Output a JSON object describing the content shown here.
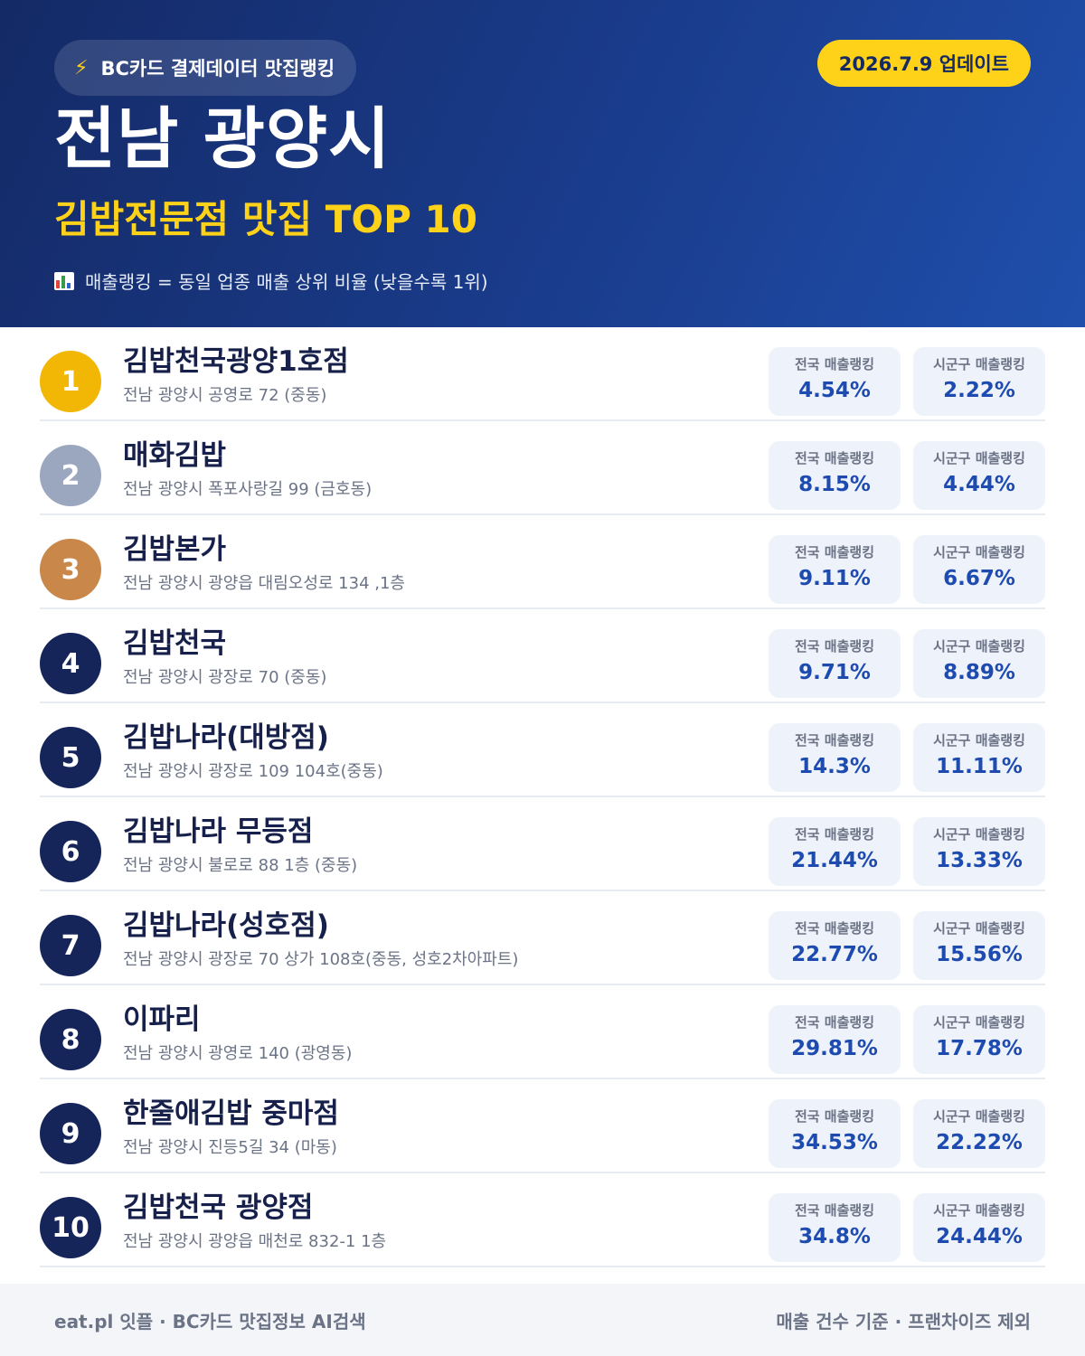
{
  "header": {
    "source_label": "BC카드 결제데이터 맛집랭킹",
    "update_label": "2026.7.9 업데이트",
    "title": "전남 광양시",
    "subtitle": "김밥전문점 맛집 TOP 10",
    "legend": "매출랭킹 = 동일 업종 매출 상위 비율 (낮을수록 1위)"
  },
  "colors": {
    "rank1": "#f2b705",
    "rank2": "#9aa7bf",
    "rank3": "#c9874a",
    "rank_default": "#152459",
    "accent": "#ffd21a",
    "value": "#1e4bb0"
  },
  "labels": {
    "national": "전국 매출랭킹",
    "local": "시군구 매출랭킹"
  },
  "restaurants": [
    {
      "rank": "1",
      "name": "김밥천국광양1호점",
      "address": "전남 광양시 공영로 72 (중동)",
      "national": "4.54%",
      "local": "2.22%"
    },
    {
      "rank": "2",
      "name": "매화김밥",
      "address": "전남 광양시 폭포사랑길 99 (금호동)",
      "national": "8.15%",
      "local": "4.44%"
    },
    {
      "rank": "3",
      "name": "김밥본가",
      "address": "전남 광양시 광양읍 대림오성로 134 ,1층",
      "national": "9.11%",
      "local": "6.67%"
    },
    {
      "rank": "4",
      "name": "김밥천국",
      "address": "전남 광양시 광장로 70 (중동)",
      "national": "9.71%",
      "local": "8.89%"
    },
    {
      "rank": "5",
      "name": "김밥나라(대방점)",
      "address": "전남 광양시 광장로 109 104호(중동)",
      "national": "14.3%",
      "local": "11.11%"
    },
    {
      "rank": "6",
      "name": "김밥나라 무등점",
      "address": "전남 광양시 불로로 88 1층 (중동)",
      "national": "21.44%",
      "local": "13.33%"
    },
    {
      "rank": "7",
      "name": "김밥나라(성호점)",
      "address": "전남 광양시 광장로 70 상가 108호(중동, 성호2차아파트)",
      "national": "22.77%",
      "local": "15.56%"
    },
    {
      "rank": "8",
      "name": "이파리",
      "address": "전남 광양시 광영로 140 (광영동)",
      "national": "29.81%",
      "local": "17.78%"
    },
    {
      "rank": "9",
      "name": "한줄애김밥 중마점",
      "address": "전남 광양시 진등5길 34 (마동)",
      "national": "34.53%",
      "local": "22.22%"
    },
    {
      "rank": "10",
      "name": "김밥천국 광양점",
      "address": "전남 광양시 광양읍 매천로 832-1 1층",
      "national": "34.8%",
      "local": "24.44%"
    }
  ],
  "footer": {
    "left": "eat.pl 잇플 · BC카드 맛집정보 AI검색",
    "right": "매출 건수 기준 · 프랜차이즈 제외"
  }
}
